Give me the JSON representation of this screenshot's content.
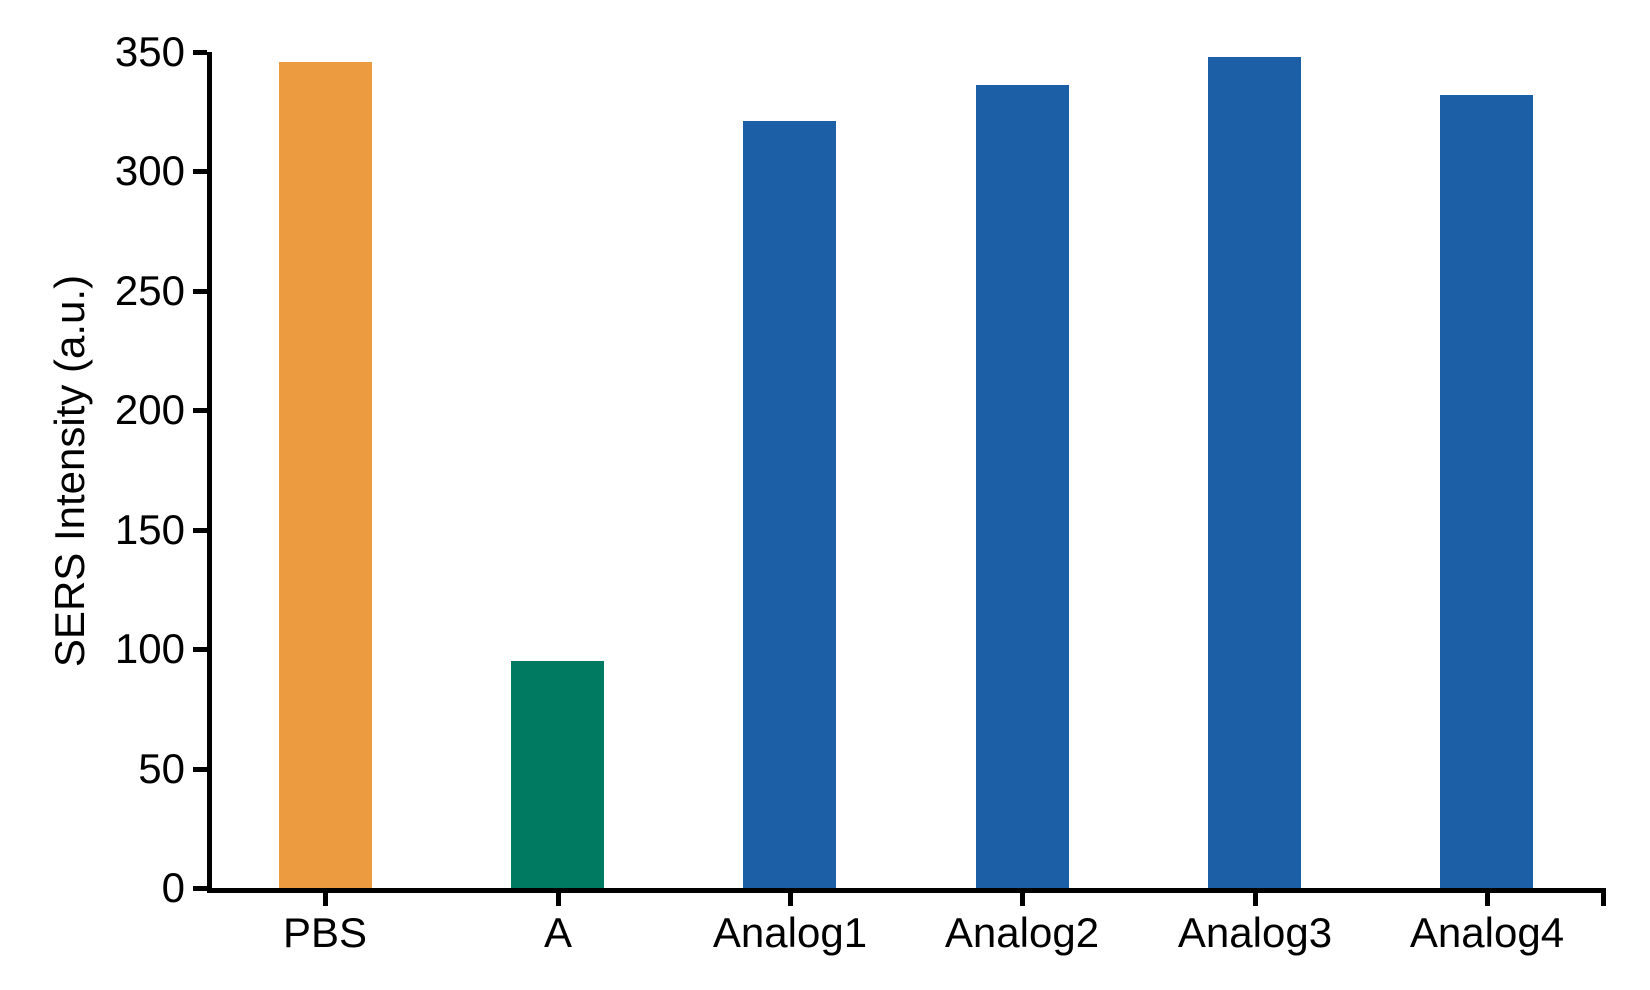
{
  "chart_data": {
    "type": "bar",
    "title": "",
    "categories": [
      "PBS",
      "A",
      "Analog1",
      "Analog2",
      "Analog3",
      "Analog4"
    ],
    "values": [
      346,
      95,
      321,
      336,
      348,
      332
    ],
    "series": [
      {
        "name": "SERS Intensity",
        "values": [
          346,
          95,
          321,
          336,
          348,
          332
        ],
        "colors": [
          "#EC9B41",
          "#007A60",
          "#1C5FA7",
          "#1C5FA7",
          "#1C5FA7",
          "#1C5FA7"
        ]
      }
    ],
    "xlabel": "",
    "ylabel": "SERS Intensity (a.u.)",
    "ylim": [
      0,
      350
    ],
    "yticks": [
      0,
      50,
      100,
      150,
      200,
      250,
      300,
      350
    ],
    "grid": false,
    "legend_position": "none",
    "axis_color": "#000000",
    "background_color": "#FFFFFF",
    "bar_colors": {
      "orange": "#EC9B41",
      "green": "#007A60",
      "blue": "#1C5FA7"
    }
  }
}
